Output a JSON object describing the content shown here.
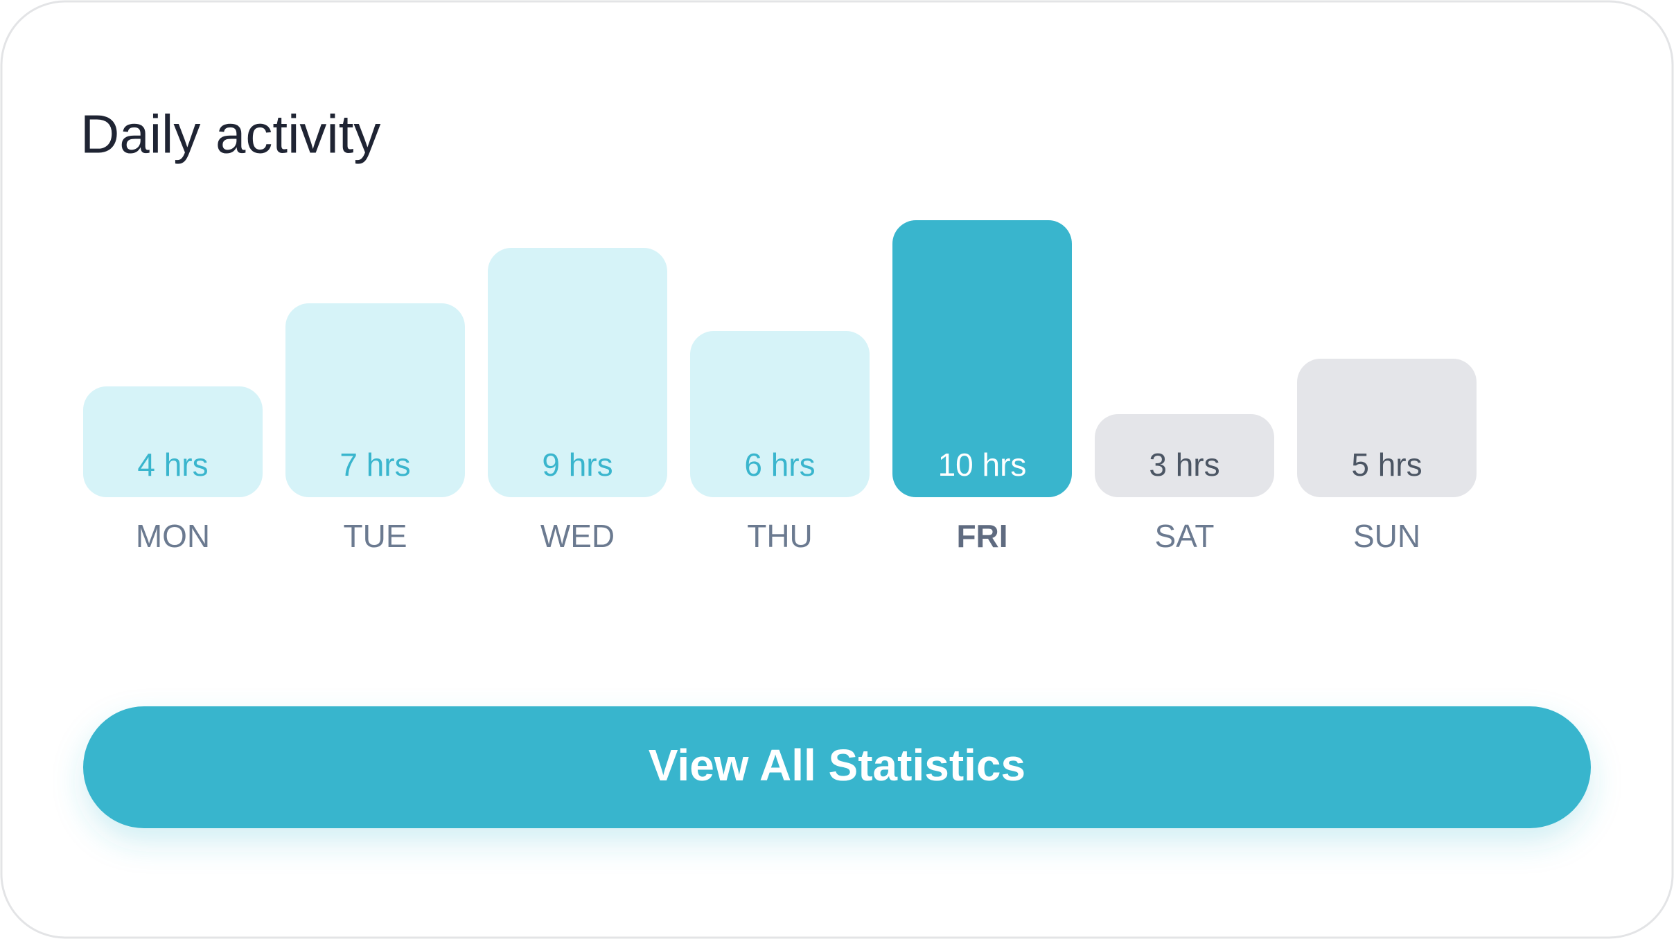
{
  "chart_data": {
    "type": "bar",
    "title": "Daily activity",
    "categories": [
      "MON",
      "TUE",
      "WED",
      "THU",
      "FRI",
      "SAT",
      "SUN"
    ],
    "values": [
      4,
      7,
      9,
      6,
      10,
      3,
      5
    ],
    "value_labels": [
      "4 hrs",
      "7 hrs",
      "9 hrs",
      "6 hrs",
      "10 hrs",
      "3 hrs",
      "5 hrs"
    ],
    "colors": [
      "#d6f3f8",
      "#d6f3f8",
      "#d6f3f8",
      "#d6f3f8",
      "#39b5cd",
      "#e4e5e9",
      "#e4e5e9"
    ],
    "label_colors": [
      "#39b5cd",
      "#39b5cd",
      "#39b5cd",
      "#39b5cd",
      "#ffffff",
      "#4b5563",
      "#4b5563"
    ],
    "highlight_index": 4
  },
  "button": {
    "label": "View All Statistics"
  }
}
